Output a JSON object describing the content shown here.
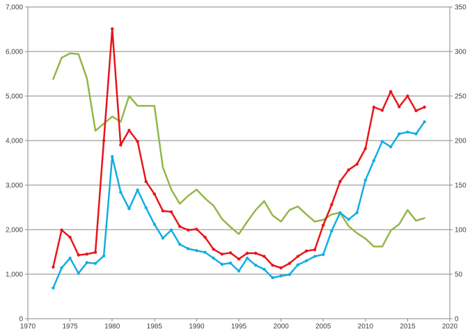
{
  "chart_data": {
    "type": "line",
    "title": "",
    "xlabel": "",
    "ylabel": "",
    "xlim": [
      1970,
      2020
    ],
    "ylim_left": [
      0,
      7000
    ],
    "ylim_right": [
      0,
      350
    ],
    "x_ticks": [
      1970,
      1975,
      1980,
      1985,
      1990,
      1995,
      2000,
      2005,
      2010,
      2015,
      2020
    ],
    "x_tick_labels": [
      "1970",
      "1975",
      "1980",
      "1985",
      "1990",
      "1995",
      "2000",
      "2005",
      "2010",
      "2015",
      "2020"
    ],
    "y_left_ticks": [
      0,
      1000,
      2000,
      3000,
      4000,
      5000,
      6000,
      7000
    ],
    "y_left_tick_labels": [
      "0",
      "1,000",
      "2,000",
      "3,000",
      "4,000",
      "5,000",
      "6,000",
      "7,000"
    ],
    "y_right_ticks": [
      0,
      50,
      100,
      150,
      200,
      250,
      300,
      350
    ],
    "y_right_tick_labels": [
      "0",
      "50",
      "100",
      "150",
      "200",
      "250",
      "300",
      "350"
    ],
    "grid": true,
    "series": [
      {
        "name": "Red series",
        "axis": "left",
        "color": "#e8141a",
        "markers": true,
        "x": [
          1973,
          1974,
          1975,
          1976,
          1977,
          1978,
          1979,
          1980,
          1981,
          1982,
          1983,
          1984,
          1985,
          1986,
          1987,
          1988,
          1989,
          1990,
          1991,
          1992,
          1993,
          1994,
          1995,
          1996,
          1997,
          1998,
          1999,
          2000,
          2001,
          2002,
          2003,
          2004,
          2005,
          2006,
          2007,
          2008,
          2009,
          2010,
          2011,
          2012,
          2013,
          2014,
          2015,
          2016,
          2017
        ],
        "values": [
          1160,
          1990,
          1830,
          1430,
          1450,
          1490,
          4000,
          6510,
          3900,
          4230,
          3980,
          3080,
          2800,
          2420,
          2400,
          2070,
          1990,
          2010,
          1830,
          1560,
          1450,
          1480,
          1340,
          1470,
          1470,
          1400,
          1200,
          1140,
          1240,
          1400,
          1520,
          1550,
          2100,
          2560,
          3080,
          3340,
          3470,
          3820,
          4750,
          4680,
          5100,
          4760,
          5000,
          4670,
          4750
        ]
      },
      {
        "name": "Blue series",
        "axis": "left",
        "color": "#11aee2",
        "markers": true,
        "x": [
          1973,
          1974,
          1975,
          1976,
          1977,
          1978,
          1979,
          1980,
          1981,
          1982,
          1983,
          1984,
          1985,
          1986,
          1987,
          1988,
          1989,
          1990,
          1991,
          1992,
          1993,
          1994,
          1995,
          1996,
          1997,
          1998,
          1999,
          2000,
          2001,
          2002,
          2003,
          2004,
          2005,
          2006,
          2007,
          2008,
          2009,
          2010,
          2011,
          2012,
          2013,
          2014,
          2015,
          2016,
          2017
        ],
        "values": [
          690,
          1140,
          1360,
          1020,
          1260,
          1240,
          1410,
          3640,
          2840,
          2470,
          2890,
          2490,
          2120,
          1810,
          1990,
          1670,
          1570,
          1530,
          1490,
          1360,
          1220,
          1250,
          1070,
          1360,
          1200,
          1110,
          920,
          960,
          990,
          1210,
          1300,
          1400,
          1440,
          1970,
          2380,
          2230,
          2380,
          3110,
          3550,
          3980,
          3860,
          4150,
          4190,
          4150,
          4420
        ]
      },
      {
        "name": "Green series",
        "axis": "right",
        "color": "#93b648",
        "markers": false,
        "x": [
          1973,
          1974,
          1975,
          1976,
          1977,
          1978,
          1979,
          1980,
          1981,
          1982,
          1983,
          1984,
          1985,
          1986,
          1987,
          1988,
          1989,
          1990,
          1991,
          1992,
          1993,
          1994,
          1995,
          1996,
          1997,
          1998,
          1999,
          2000,
          2001,
          2002,
          2003,
          2004,
          2005,
          2006,
          2007,
          2008,
          2009,
          2010,
          2011,
          2012,
          2013,
          2014,
          2015,
          2016,
          2017
        ],
        "values": [
          269,
          293,
          298,
          297,
          270,
          211,
          219,
          227,
          221,
          250,
          239,
          239,
          239,
          170,
          145,
          129,
          138,
          145,
          135,
          127,
          112,
          103,
          95,
          109,
          122,
          132,
          116,
          109,
          122,
          126,
          117,
          109,
          111,
          117,
          119,
          104,
          96,
          90,
          81,
          81,
          99,
          106,
          122,
          110,
          113
        ]
      }
    ]
  }
}
